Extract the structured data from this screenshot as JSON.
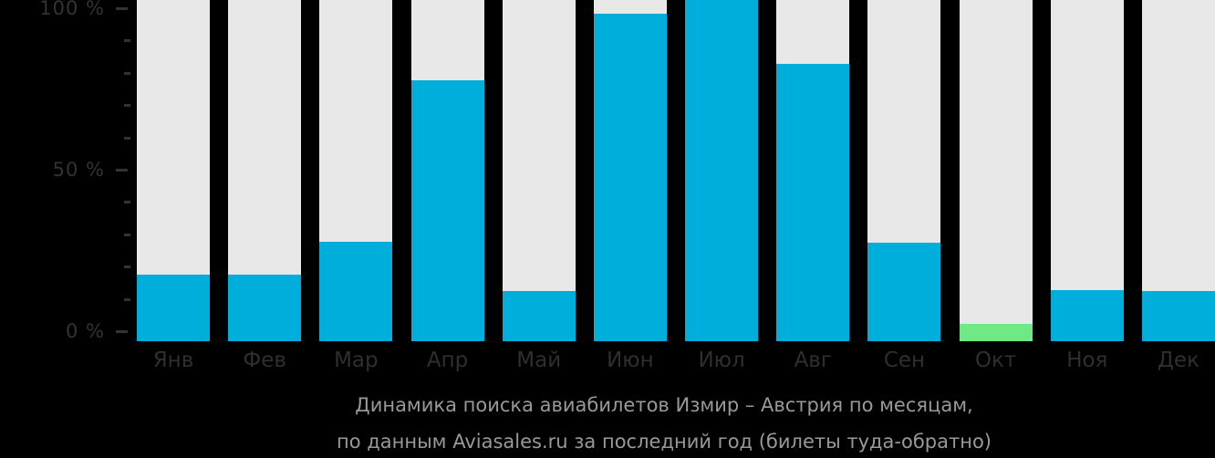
{
  "background": "#000000",
  "colors": {
    "bar_blue": "#00aedc",
    "bar_green": "#6ee985",
    "bar_track_gray": "#e8e8e8",
    "axis_text": "#333333",
    "month_text": "#2f2f2f",
    "caption_text": "#999999"
  },
  "y_axis": {
    "tick_step_pct": 10,
    "labeled_ticks": [
      {
        "pct": 100,
        "label": "100 %"
      },
      {
        "pct": 50,
        "label": "50 %"
      },
      {
        "pct": 0,
        "label": "0 %"
      }
    ]
  },
  "caption": {
    "line1": "Динамика поиска авиабилетов Измир – Австрия по месяцам,",
    "line2": "по данным Aviasales.ru за последний год (билеты туда-обратно)"
  },
  "chart_data": {
    "type": "bar",
    "title": "Динамика поиска авиабилетов Измир – Австрия по месяцам",
    "subtitle": "по данным Aviasales.ru за последний год (билеты туда-обратно)",
    "categories": [
      "Янв",
      "Фев",
      "Мар",
      "Апр",
      "Май",
      "Июн",
      "Июл",
      "Авг",
      "Сен",
      "Окт",
      "Ноя",
      "Дек"
    ],
    "values": [
      19.5,
      19.5,
      29.1,
      76.5,
      14.7,
      96,
      100,
      81.3,
      28.9,
      5.1,
      15,
      14.7
    ],
    "unit": "%",
    "ylabel": "",
    "xlabel": "",
    "ylim": [
      0,
      100
    ],
    "ytick_labels": [
      "0 %",
      "50 %",
      "100 %"
    ],
    "grid": false,
    "legend_position": "none",
    "bar_color": "#00aedc",
    "track_color": "#e8e8e8",
    "highlight_index": 9,
    "highlight_color": "#6ee985",
    "note": "values are search share in percent of the peak month (Июл = 100 %); Окт bar is highlighted green"
  }
}
